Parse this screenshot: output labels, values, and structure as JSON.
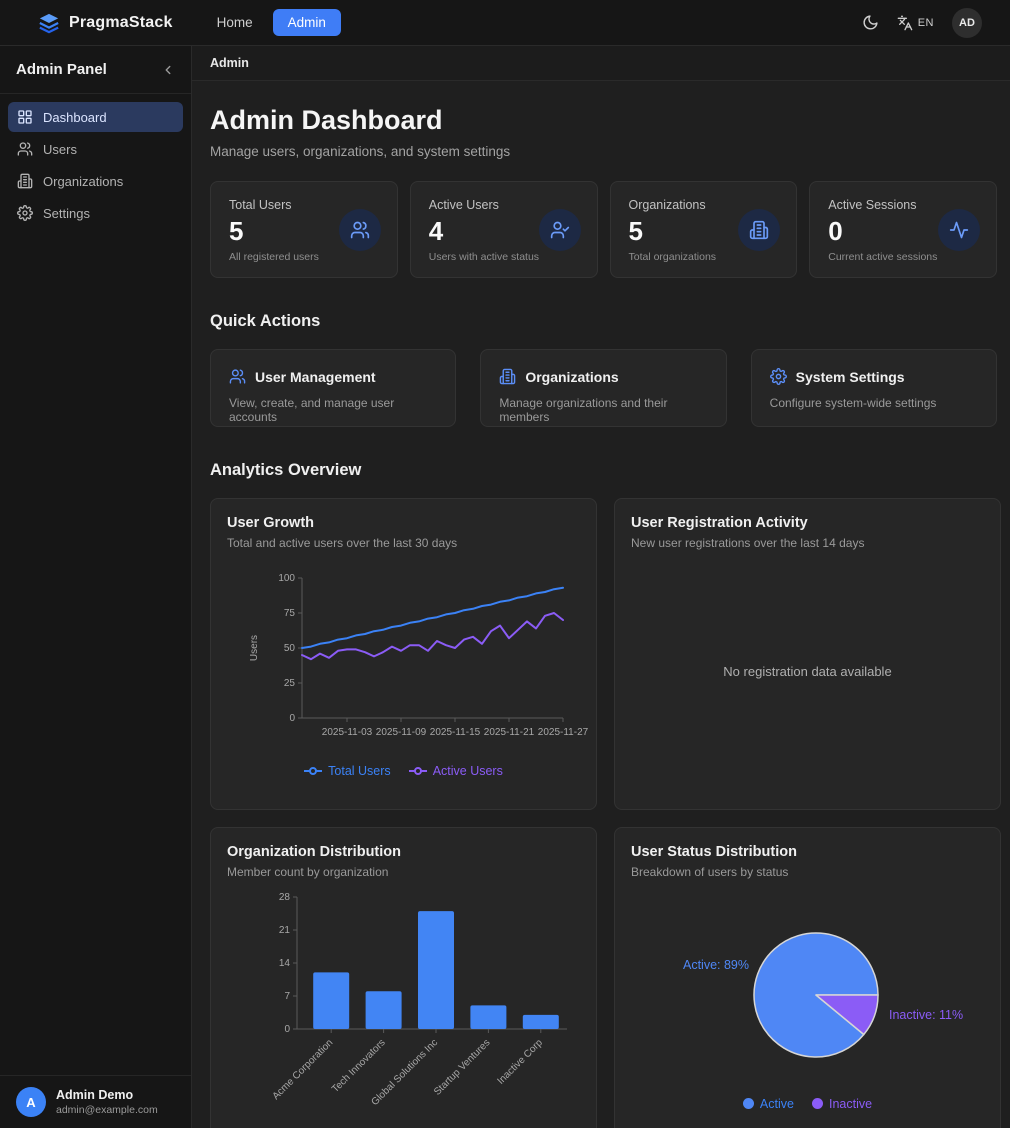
{
  "navbar": {
    "brand": "PragmaStack",
    "links": {
      "home": "Home",
      "admin": "Admin"
    },
    "language": "EN",
    "avatar_initials": "AD"
  },
  "sidebar": {
    "title": "Admin Panel",
    "items": [
      {
        "label": "Dashboard",
        "icon": "dashboard-icon",
        "active": true
      },
      {
        "label": "Users",
        "icon": "users-icon",
        "active": false
      },
      {
        "label": "Organizations",
        "icon": "building-icon",
        "active": false
      },
      {
        "label": "Settings",
        "icon": "gear-icon",
        "active": false
      }
    ],
    "footer": {
      "initial": "A",
      "name": "Admin Demo",
      "email": "admin@example.com"
    }
  },
  "breadcrumb": "Admin",
  "header": {
    "title": "Admin Dashboard",
    "subtitle": "Manage users, organizations, and system settings"
  },
  "stats": [
    {
      "label": "Total Users",
      "value": "5",
      "description": "All registered users",
      "icon": "users-icon"
    },
    {
      "label": "Active Users",
      "value": "4",
      "description": "Users with active status",
      "icon": "user-check-icon"
    },
    {
      "label": "Organizations",
      "value": "5",
      "description": "Total organizations",
      "icon": "building-icon"
    },
    {
      "label": "Active Sessions",
      "value": "0",
      "description": "Current active sessions",
      "icon": "activity-icon"
    }
  ],
  "quick_actions": {
    "heading": "Quick Actions",
    "cards": [
      {
        "title": "User Management",
        "description": "View, create, and manage user accounts",
        "icon": "users-icon"
      },
      {
        "title": "Organizations",
        "description": "Manage organizations and their members",
        "icon": "building-icon"
      },
      {
        "title": "System Settings",
        "description": "Configure system-wide settings",
        "icon": "gear-icon"
      }
    ]
  },
  "analytics": {
    "heading": "Analytics Overview"
  },
  "chart_data": [
    {
      "type": "line",
      "title": "User Growth",
      "subtitle": "Total and active users over the last 30 days",
      "ylabel": "Users",
      "ylim": [
        0,
        100
      ],
      "yticks": [
        0,
        25,
        50,
        75,
        100
      ],
      "xticks": [
        "2025-11-03",
        "2025-11-09",
        "2025-11-15",
        "2025-11-21",
        "2025-11-27"
      ],
      "xtick_indices": [
        5,
        11,
        17,
        23,
        29
      ],
      "n_points": 30,
      "legend_position": "bottom",
      "grid": false,
      "series": [
        {
          "name": "Total Users",
          "color": "#3b82f6",
          "values": [
            50,
            51,
            53,
            54,
            56,
            57,
            59,
            60,
            62,
            63,
            65,
            66,
            68,
            69,
            71,
            72,
            74,
            75,
            77,
            78,
            80,
            81,
            83,
            84,
            86,
            87,
            89,
            90,
            92,
            93
          ]
        },
        {
          "name": "Active Users",
          "color": "#8b5cf6",
          "values": [
            45,
            42,
            46,
            43,
            48,
            49,
            49,
            47,
            44,
            47,
            51,
            48,
            52,
            52,
            48,
            55,
            52,
            50,
            56,
            58,
            53,
            62,
            66,
            57,
            63,
            69,
            64,
            73,
            75,
            70
          ]
        }
      ]
    },
    {
      "type": "line",
      "title": "User Registration Activity",
      "subtitle": "New user registrations over the last 14 days",
      "empty_message": "No registration data available",
      "series": []
    },
    {
      "type": "bar",
      "title": "Organization Distribution",
      "subtitle": "Member count by organization",
      "categories": [
        "Acme Corporation",
        "Tech Innovators",
        "Global Solutions Inc",
        "Startup Ventures",
        "Inactive Corp"
      ],
      "values": [
        12,
        8,
        25,
        5,
        3
      ],
      "ylim": [
        0,
        28
      ],
      "yticks": [
        0,
        7,
        14,
        21,
        28
      ],
      "bar_color": "#4285f4",
      "grid": false
    },
    {
      "type": "pie",
      "title": "User Status Distribution",
      "subtitle": "Breakdown of users by status",
      "slices": [
        {
          "label": "Active",
          "pct": 89,
          "color": "#4f87f5",
          "callout": "Active: 89%"
        },
        {
          "label": "Inactive",
          "pct": 11,
          "color": "#8b5cf6",
          "callout": "Inactive: 11%"
        }
      ],
      "legend_position": "bottom"
    }
  ],
  "colors": {
    "accent": "#3f7df6",
    "card_bg": "#262626",
    "page_bg": "#1f1f1f"
  }
}
